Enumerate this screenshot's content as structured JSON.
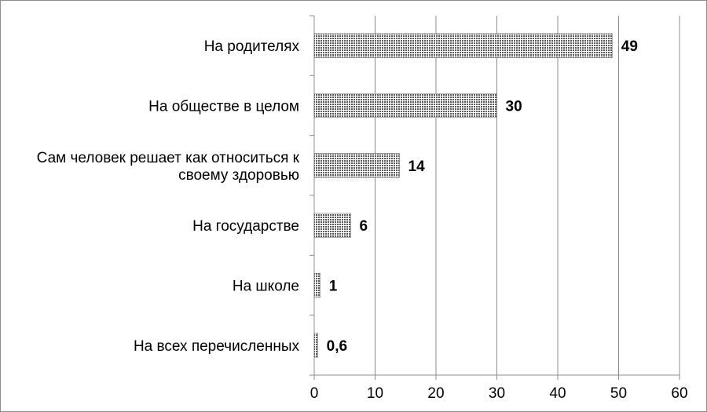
{
  "chart_data": {
    "type": "bar",
    "orientation": "horizontal",
    "categories": [
      "На родителях",
      "На обществе в целом",
      "Сам человек решает как относиться к своему здоровью",
      "На государстве",
      "На школе",
      "На всех перечисленных"
    ],
    "category_lines": [
      [
        "На родителях"
      ],
      [
        "На обществе в целом"
      ],
      [
        "Сам человек решает как относиться к",
        "своему здоровью"
      ],
      [
        "На государстве"
      ],
      [
        "На школе"
      ],
      [
        "На всех перечисленных"
      ]
    ],
    "values": [
      49,
      30,
      14,
      6,
      1,
      0.6
    ],
    "data_labels": [
      "49",
      "30",
      "14",
      "6",
      "1",
      "0,6"
    ],
    "xlim": [
      0,
      60
    ],
    "x_ticks": [
      0,
      10,
      20,
      30,
      40,
      50,
      60
    ],
    "x_tick_labels": [
      "0",
      "10",
      "20",
      "30",
      "40",
      "50",
      "60"
    ],
    "grid": "vertical",
    "legend": "none",
    "bar_fill": "dotted-gray",
    "colors": {
      "grid": "#8c8c8c",
      "bar": "#808080",
      "text": "#000000"
    }
  }
}
